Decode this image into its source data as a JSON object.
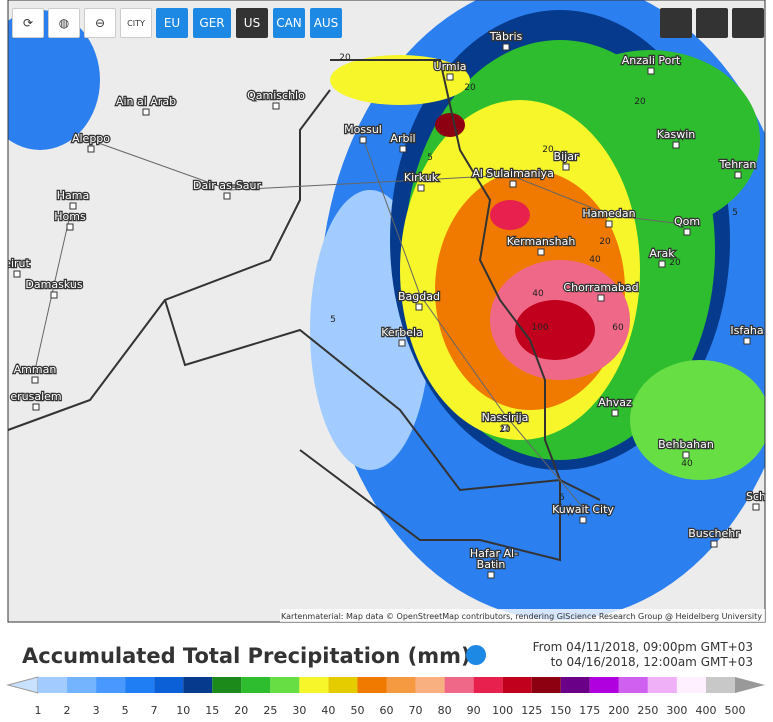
{
  "toolbar": {
    "city": "CITY",
    "regions": [
      "EU",
      "GER",
      "US",
      "CAN",
      "AUS"
    ]
  },
  "map": {
    "cities": [
      "Täbris",
      "Urmia",
      "Anzali Port",
      "Ain al Arab",
      "Qamischlo",
      "Aleppo",
      "Mossul",
      "Arbil",
      "Kaswin",
      "Bijar",
      "Tehran",
      "Hama",
      "Dair as-Saur",
      "Kirkuk",
      "Al Sulaimaniya",
      "Homs",
      "Hamedan",
      "Qom",
      "eirut",
      "Kermanshah",
      "Arak",
      "Damaskus",
      "Chorramabad",
      "Bagdad",
      "Kerbela",
      "Isfaha",
      "Amman",
      "Ahvaz",
      "erusalem",
      "Nassirija",
      "Behbahan",
      "Kuwait City",
      "Sch",
      "Buschehr",
      "Hafar Al-",
      "Batin"
    ],
    "contours": [
      "20",
      "5",
      "20",
      "20",
      "20",
      "20",
      "40",
      "40",
      "60",
      "100",
      "5",
      "20",
      "40",
      "5",
      "5",
      "20"
    ],
    "attribution": "Kartenmaterial: Map data © OpenStreetMap contributors, rendering GIScience Research Group @ Heidelberg University"
  },
  "footer": {
    "title": "Accumulated Total Precipitation (mm)",
    "from": "From 04/11/2018, 09:00pm GMT+03",
    "to": "to 04/16/2018, 12:00am GMT+03"
  },
  "legend": {
    "labels": [
      "1",
      "2",
      "3",
      "5",
      "7",
      "10",
      "15",
      "20",
      "25",
      "30",
      "40",
      "50",
      "60",
      "70",
      "80",
      "90",
      "100",
      "125",
      "150",
      "175",
      "200",
      "250",
      "300",
      "400",
      "500"
    ],
    "colors": [
      "#c8e1ff",
      "#a2ccff",
      "#74b4ff",
      "#4898ff",
      "#207ef5",
      "#0b60d8",
      "#053a8c",
      "#1b8a1b",
      "#2ebd2e",
      "#66de44",
      "#f6f62a",
      "#e4cc00",
      "#f07a00",
      "#f59a40",
      "#f8b080",
      "#f06888",
      "#e8204e",
      "#c0001c",
      "#8c0012",
      "#6a0088",
      "#b000e0",
      "#d060f0",
      "#f0b0f8",
      "#fff0ff",
      "#c8c8c8"
    ]
  }
}
